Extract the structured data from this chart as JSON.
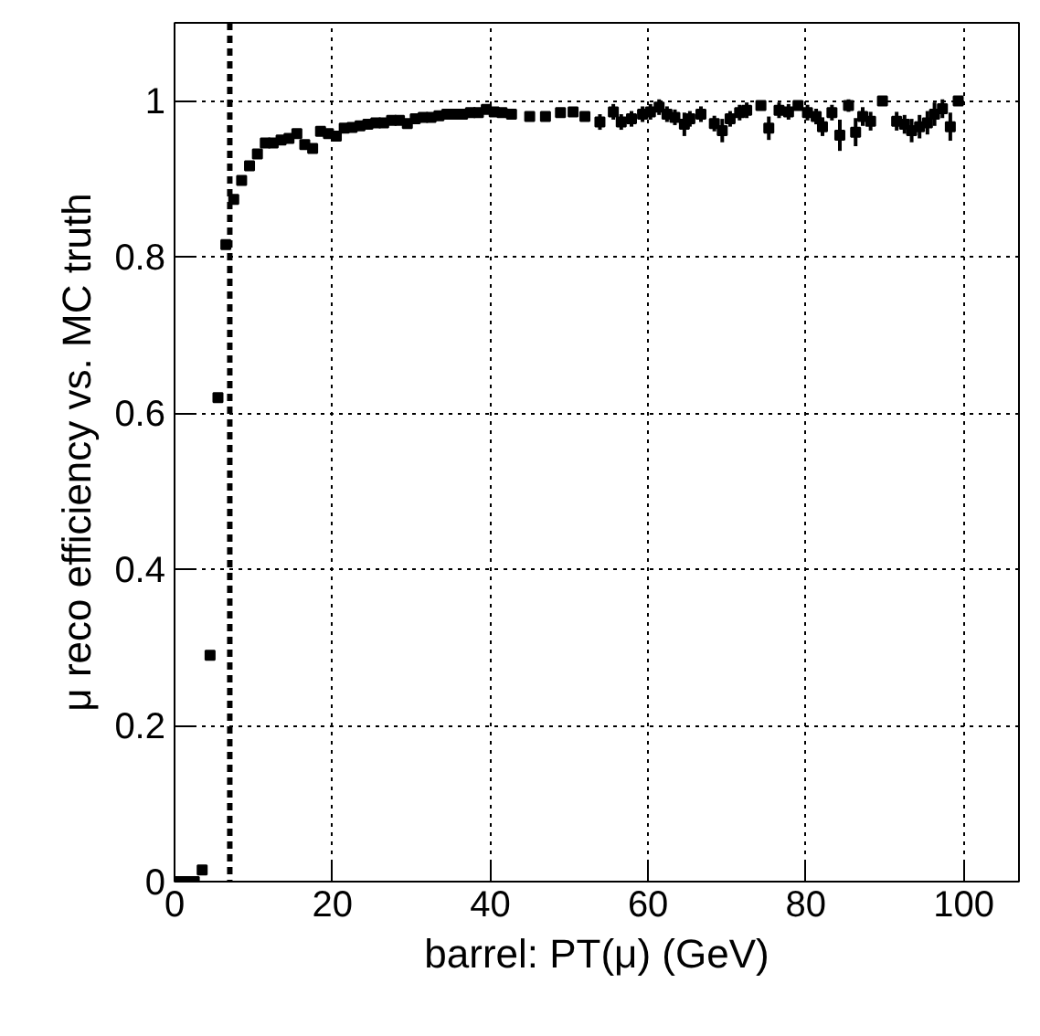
{
  "chart_data": {
    "type": "scatter",
    "xlabel": "barrel: PT(μ) (GeV)",
    "ylabel": "μ reco efficiency vs. MC truth",
    "x": [
      0.5,
      1.5,
      2.5,
      3.5,
      4.5,
      5.5,
      6.5,
      7.5,
      8.5,
      9.5,
      10.5,
      11.5,
      12.5,
      13.5,
      14.5,
      15.5,
      16.5,
      17.5,
      18.5,
      19.5,
      20.5,
      21.5,
      22.5,
      23.5,
      24.5,
      25.5,
      26.5,
      27.5,
      28.5,
      29.5,
      30.5,
      31.5,
      32.5,
      33.5,
      34.5,
      35.5,
      36.5,
      37.5,
      38.5,
      39.5,
      40.5,
      41.5,
      42.7,
      45,
      47,
      48.9,
      50.5,
      52,
      53.9,
      55.6,
      56.6,
      57.9,
      59.3,
      60.3,
      61.4,
      62.4,
      63.4,
      64.6,
      65.3,
      66.7,
      68.4,
      69.4,
      70.4,
      71.6,
      72.5,
      74.3,
      75.3,
      76.6,
      77.8,
      79,
      80.2,
      81.3,
      82.1,
      83.3,
      84.3,
      85.4,
      86.3,
      87.2,
      88.2,
      89.7,
      91.5,
      92.5,
      93.4,
      94.4,
      95.4,
      96.3,
      97.3,
      98.3,
      99.3
    ],
    "series": [
      {
        "color": "#000000",
        "values": [
          0,
          0,
          0,
          0.015,
          0.29,
          0.62,
          0.816,
          0.874,
          0.898,
          0.917,
          0.932,
          0.946,
          0.946,
          0.95,
          0.952,
          0.958,
          0.944,
          0.939,
          0.961,
          0.958,
          0.955,
          0.965,
          0.966,
          0.968,
          0.97,
          0.972,
          0.972,
          0.975,
          0.975,
          0.971,
          0.977,
          0.979,
          0.979,
          0.981,
          0.983,
          0.983,
          0.983,
          0.985,
          0.985,
          0.989,
          0.986,
          0.985,
          0.983,
          0.98,
          0.98,
          0.985,
          0.986,
          0.98,
          0.973,
          0.986,
          0.973,
          0.977,
          0.983,
          0.986,
          0.992,
          0.983,
          0.979,
          0.97,
          0.977,
          0.983,
          0.971,
          0.962,
          0.977,
          0.985,
          0.988,
          0.994,
          0.965,
          0.988,
          0.986,
          0.994,
          0.985,
          0.98,
          0.967,
          0.985,
          0.956,
          0.994,
          0.96,
          0.98,
          0.974,
          1.0,
          0.974,
          0.97,
          0.962,
          0.967,
          0.972,
          0.983,
          0.99,
          0.967,
          1.0
        ],
        "errors": [
          null,
          null,
          null,
          null,
          null,
          null,
          null,
          null,
          null,
          null,
          null,
          null,
          null,
          null,
          null,
          null,
          null,
          null,
          null,
          null,
          null,
          null,
          null,
          null,
          null,
          null,
          null,
          null,
          null,
          null,
          null,
          null,
          null,
          null,
          null,
          null,
          null,
          null,
          null,
          null,
          null,
          null,
          null,
          null,
          null,
          null,
          null,
          null,
          0.01,
          0.01,
          0.01,
          0.01,
          0.01,
          0.01,
          0.01,
          0.01,
          0.01,
          0.015,
          0.01,
          0.01,
          0.01,
          0.015,
          0.01,
          0.01,
          0.01,
          0.005,
          0.015,
          0.01,
          0.01,
          0.005,
          0.01,
          0.01,
          0.012,
          0.01,
          0.02,
          0.008,
          0.018,
          0.012,
          0.012,
          0.005,
          0.012,
          0.012,
          0.015,
          0.015,
          0.015,
          0.015,
          0.012,
          0.018,
          0.005
        ]
      }
    ],
    "xlim": [
      0,
      107
    ],
    "ylim": [
      0,
      1.1
    ],
    "xticks": [
      0,
      20,
      40,
      60,
      80,
      100
    ],
    "yticks": [
      0,
      {
        "value": 0.2,
        "label": "0.2"
      },
      {
        "value": 0.4,
        "label": "0.4"
      },
      {
        "value": 0.6,
        "label": "0.6"
      },
      {
        "value": 0.8,
        "label": "0.8"
      },
      1
    ],
    "ref_lines": [
      {
        "axis": "x",
        "value": 7,
        "color": "#000000",
        "line_style": "dashed"
      }
    ],
    "grid": true,
    "marker": "square"
  }
}
